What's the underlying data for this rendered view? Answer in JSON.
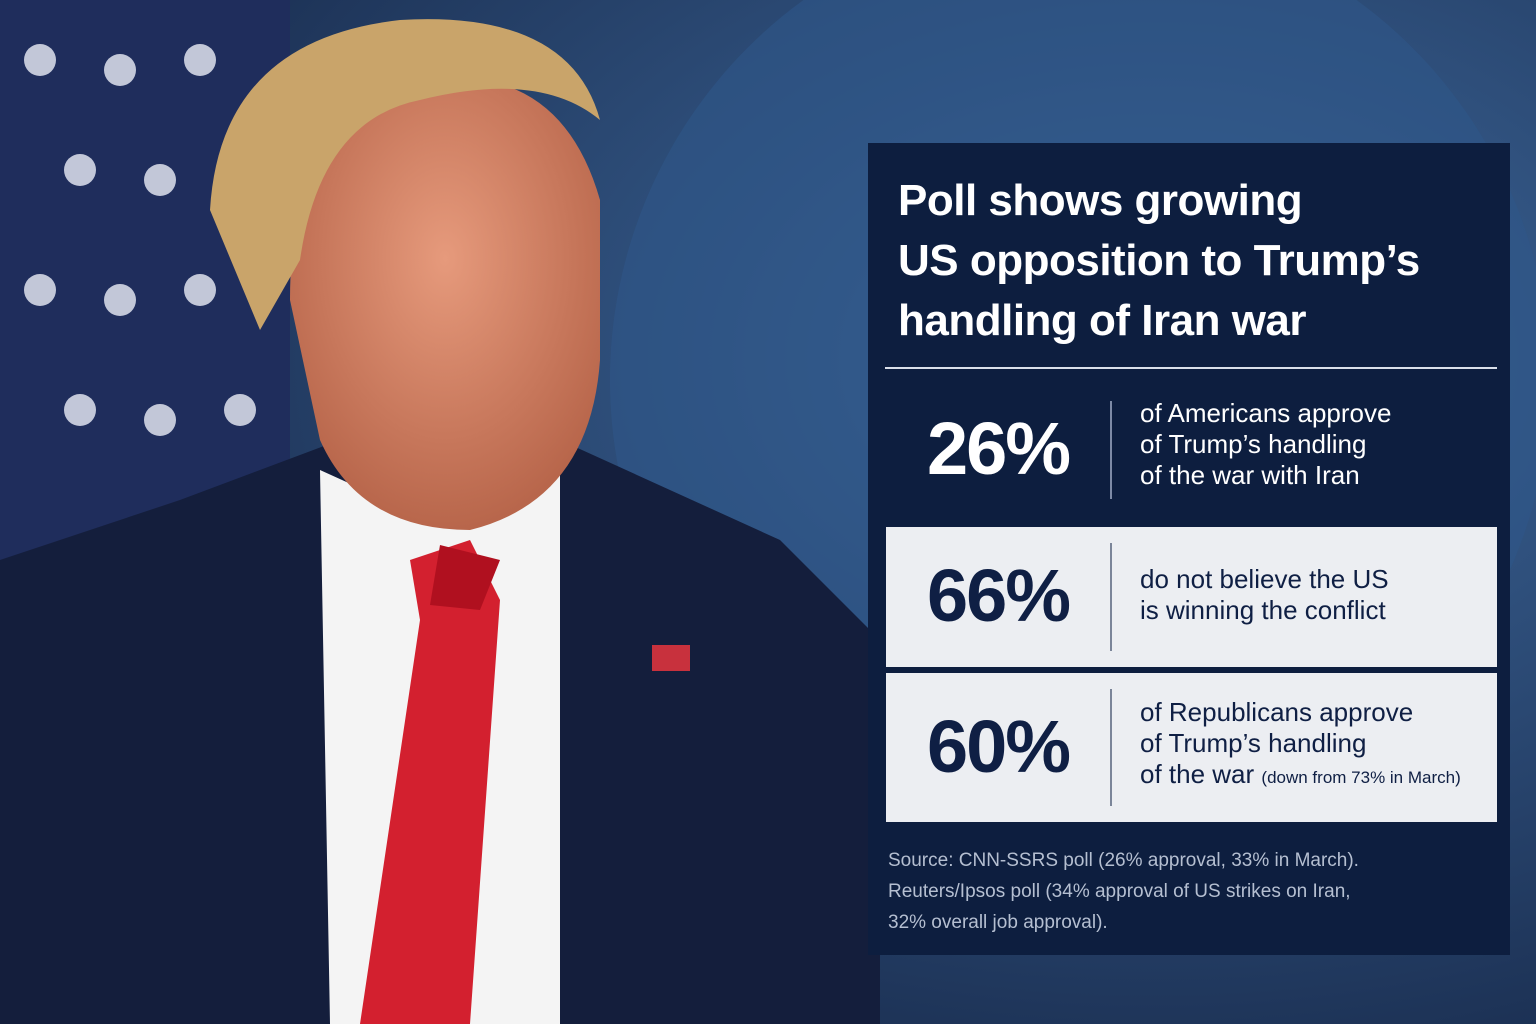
{
  "headline": [
    "Poll shows growing",
    "US opposition to Trump’s",
    "handling of Iran war"
  ],
  "stats": [
    {
      "figure": "26%",
      "text": [
        "of Americans approve",
        "of Trump’s handling",
        "of the war with Iran"
      ]
    },
    {
      "figure": "66%",
      "text": [
        "do not believe the US",
        "is winning the conflict"
      ]
    },
    {
      "figure": "60%",
      "text": [
        "of Republicans approve",
        "of Trump’s handling",
        "of the war"
      ],
      "note": "(down from 73% in March)"
    }
  ],
  "source": [
    "Source: CNN-SSRS poll (26% approval, 33% in March).",
    "Reuters/Ipsos poll (34% approval of US strikes on Iran,",
    "32% overall job approval)."
  ]
}
